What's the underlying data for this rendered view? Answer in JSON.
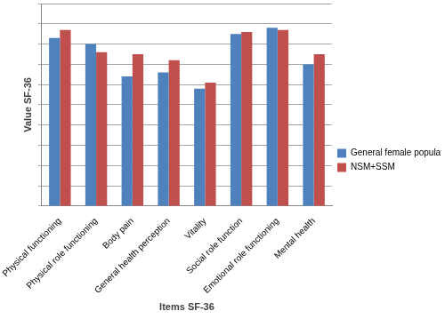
{
  "chart_data": {
    "type": "bar",
    "x_label": "Items SF-36",
    "y_label": "Value SF-36",
    "categories": [
      "Physical functioning",
      "Physical role functioning",
      "Body pain",
      "General health perception",
      "Vitality",
      "Social role function",
      "Emotional role functioning",
      "Mental health"
    ],
    "series": [
      {
        "name": "General female population",
        "color": "#4f81bd",
        "values": [
          83,
          80,
          64,
          66,
          58,
          85,
          88,
          70
        ]
      },
      {
        "name": "NSM+SSM",
        "color": "#c0504d",
        "values": [
          87,
          76,
          75,
          72,
          61,
          86,
          87,
          75
        ]
      }
    ],
    "ylim": [
      0,
      100
    ],
    "yticks": [
      0,
      10,
      20,
      30,
      40,
      50,
      60,
      70,
      80,
      90,
      100
    ],
    "grid": true,
    "legend": "right",
    "tick_labels": "x"
  }
}
